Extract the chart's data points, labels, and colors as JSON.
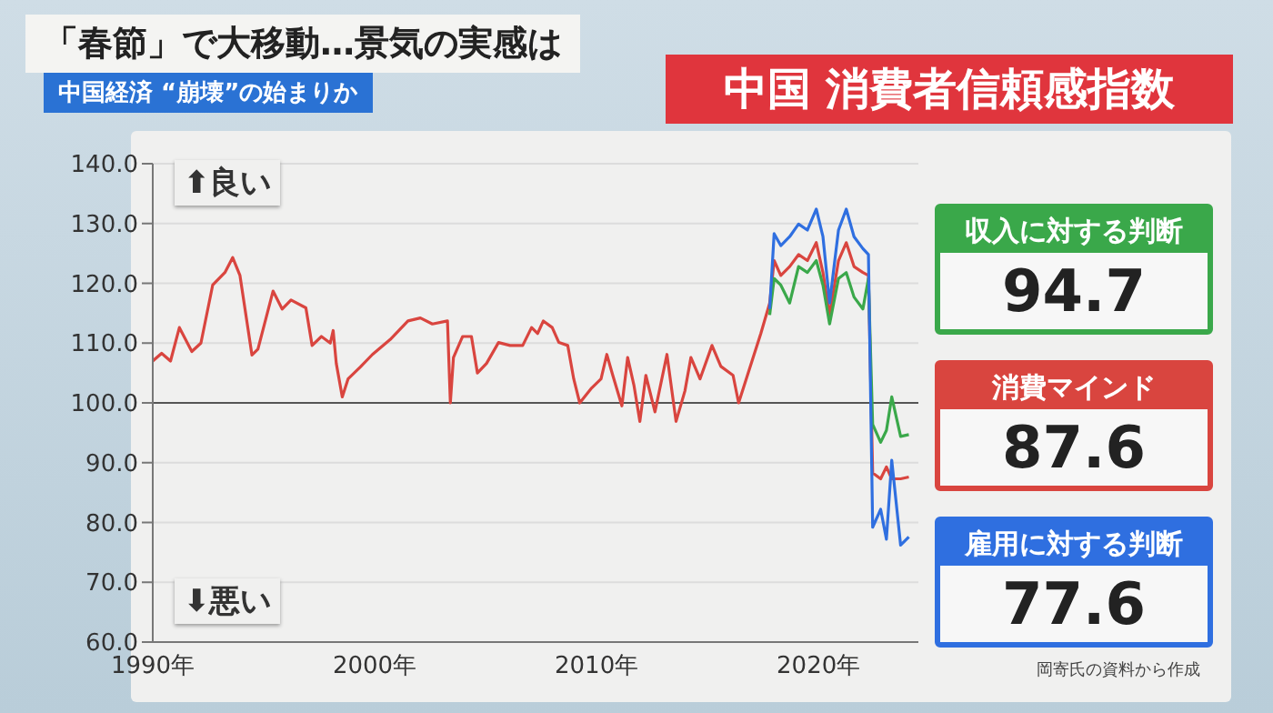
{
  "chart_data": {
    "type": "line",
    "title": "中国 消費者信頼感指数",
    "subtitle": "中国経済 “崩壊”の始まりか",
    "annotations": [
      "「春節」で大移動…景気の実感は",
      "⬆良い",
      "⬇悪い",
      "岡寄氏の資料から作成",
      "94.7",
      "87.6",
      "77.6"
    ],
    "series": [
      {
        "name": "収入に対する判断",
        "color": "#3aa84a",
        "x": [
          2017.8,
          2018.0,
          2018.3,
          2018.7,
          2019.1,
          2019.5,
          2019.9,
          2020.2,
          2020.5,
          2020.9,
          2021.25,
          2021.6,
          2022.0,
          2022.25,
          2022.44,
          2022.8,
          2023.06,
          2023.3,
          2023.7,
          2024.07
        ],
        "values": [
          114.7,
          120.8,
          119.7,
          116.7,
          122.8,
          121.8,
          123.8,
          119.7,
          113.2,
          120.8,
          121.8,
          117.7,
          115.7,
          120.8,
          96.4,
          93.4,
          95.4,
          101,
          94.4,
          94.7
        ]
      },
      {
        "name": "消費マインド",
        "color": "#d9453f",
        "x": [
          1990.0,
          1990.4,
          1990.8,
          1991.2,
          1991.76,
          1992.17,
          1992.7,
          1993.25,
          1993.6,
          1993.93,
          1994.47,
          1994.74,
          1995.42,
          1995.83,
          1996.23,
          1996.9,
          1997.18,
          1997.6,
          1998.0,
          1998.13,
          1998.27,
          1998.54,
          1998.8,
          1999.35,
          1999.9,
          2000.7,
          2001.5,
          2002.06,
          2002.6,
          2003.28,
          2003.41,
          2003.55,
          2003.96,
          2004.36,
          2004.63,
          2005.04,
          2005.58,
          2006.1,
          2006.67,
          2007.07,
          2007.34,
          2007.6,
          2008.0,
          2008.3,
          2008.7,
          2008.97,
          2009.24,
          2009.78,
          2010.2,
          2010.46,
          2010.73,
          2011.14,
          2011.4,
          2011.68,
          2011.95,
          2012.22,
          2012.63,
          2013.17,
          2013.58,
          2013.98,
          2014.25,
          2014.66,
          2015.2,
          2015.6,
          2016.15,
          2016.4,
          2016.97,
          2017.4,
          2017.8,
          2018.0,
          2018.3,
          2018.7,
          2019.1,
          2019.5,
          2019.9,
          2020.2,
          2020.5,
          2020.9,
          2021.25,
          2021.6,
          2022.0,
          2022.25,
          2022.44,
          2022.8,
          2023.06,
          2023.3,
          2023.7,
          2024.07
        ],
        "values": [
          107,
          108.3,
          107,
          112.6,
          108.6,
          110,
          119.7,
          121.8,
          124.3,
          121.3,
          108,
          109,
          118.7,
          115.7,
          117.2,
          115.9,
          109.6,
          111.1,
          110,
          112.1,
          106.6,
          101,
          104,
          106,
          108.1,
          110.6,
          113.7,
          114.2,
          113.2,
          113.7,
          100,
          107.6,
          111.1,
          111.1,
          105,
          106.6,
          110.1,
          109.6,
          109.6,
          112.6,
          111.6,
          113.7,
          112.6,
          110.1,
          109.6,
          104,
          100,
          102.5,
          104,
          108.1,
          104.6,
          99.5,
          107.6,
          103,
          96.9,
          104.6,
          98.5,
          108.1,
          96.9,
          102,
          107.6,
          104,
          109.6,
          106.1,
          104.6,
          100,
          106.6,
          111.6,
          116.7,
          123.8,
          121.3,
          122.8,
          124.8,
          123.8,
          126.8,
          121.8,
          114.7,
          123.8,
          126.8,
          122.8,
          121.8,
          121.3,
          88.3,
          87.3,
          89.3,
          87.3,
          87.3,
          87.6
        ]
      },
      {
        "name": "雇用に対する判断",
        "color": "#2f6fe0",
        "x": [
          2017.8,
          2018.0,
          2018.3,
          2018.7,
          2019.1,
          2019.5,
          2019.9,
          2020.2,
          2020.5,
          2020.9,
          2021.25,
          2021.6,
          2022.0,
          2022.25,
          2022.44,
          2022.8,
          2023.06,
          2023.3,
          2023.7,
          2024.07
        ],
        "values": [
          115.7,
          128.3,
          126.3,
          127.8,
          129.9,
          128.9,
          132.4,
          127.8,
          116.7,
          128.9,
          132.4,
          127.8,
          125.8,
          124.8,
          79.2,
          82.2,
          77.2,
          90.4,
          76.2,
          77.6
        ]
      }
    ],
    "xlim": [
      1990,
      2024.5
    ],
    "xticks": [
      {
        "value": 1990,
        "label": "1990年"
      },
      {
        "value": 2000,
        "label": "2000年"
      },
      {
        "value": 2010,
        "label": "2010年"
      },
      {
        "value": 2020,
        "label": "2020年"
      }
    ],
    "ylim": [
      60,
      140
    ],
    "yticks": [
      {
        "value": 60,
        "label": "60.0"
      },
      {
        "value": 70,
        "label": "70.0"
      },
      {
        "value": 80,
        "label": "80.0"
      },
      {
        "value": 90,
        "label": "90.0"
      },
      {
        "value": 100,
        "label": "100.0"
      },
      {
        "value": 110,
        "label": "110.0"
      },
      {
        "value": 120,
        "label": "120.0"
      },
      {
        "value": 130,
        "label": "130.0"
      },
      {
        "value": 140,
        "label": "140.0"
      }
    ],
    "ref_lines": [
      {
        "axis": "y",
        "value": 100,
        "color": "#555555"
      }
    ],
    "grid": "y",
    "legend": "right",
    "marker": "none",
    "line_style": "solid"
  }
}
